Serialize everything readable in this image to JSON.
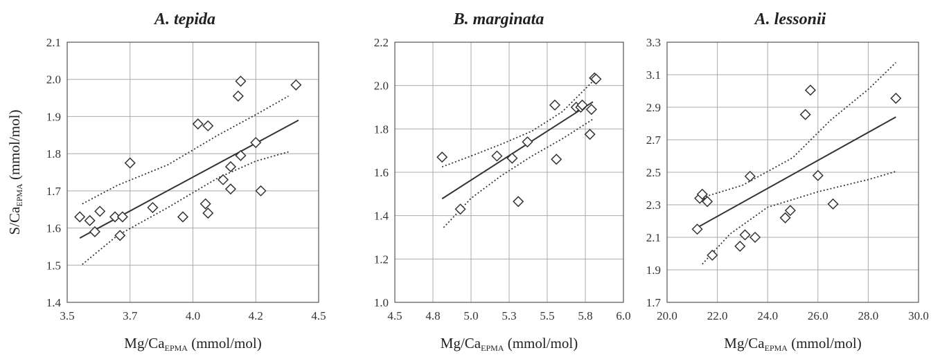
{
  "chart_data": [
    {
      "type": "scatter",
      "title": "A. tepida",
      "xlabel": {
        "main": "Mg/Ca",
        "sub": "EPMA",
        "unit": " (mmol/mol)"
      },
      "ylabel": {
        "main": "S/Ca",
        "sub": "EPMA",
        "unit": " (mmol/mol)"
      },
      "xlim": [
        3.5,
        4.5
      ],
      "ylim": [
        1.4,
        2.1
      ],
      "x_ticks": [
        "3.5",
        "3.7",
        "4.0",
        "4.2",
        "4.5"
      ],
      "y_ticks": [
        "1.4",
        "1.5",
        "1.6",
        "1.7",
        "1.8",
        "1.9",
        "2.0",
        "2.1"
      ],
      "grid": true,
      "points": [
        [
          3.55,
          1.63
        ],
        [
          3.59,
          1.62
        ],
        [
          3.61,
          1.59
        ],
        [
          3.63,
          1.645
        ],
        [
          3.69,
          1.63
        ],
        [
          3.71,
          1.58
        ],
        [
          3.72,
          1.63
        ],
        [
          3.75,
          1.775
        ],
        [
          3.84,
          1.655
        ],
        [
          3.96,
          1.63
        ],
        [
          4.02,
          1.88
        ],
        [
          4.06,
          1.875
        ],
        [
          4.05,
          1.665
        ],
        [
          4.06,
          1.64
        ],
        [
          4.12,
          1.73
        ],
        [
          4.15,
          1.765
        ],
        [
          4.15,
          1.705
        ],
        [
          4.18,
          1.955
        ],
        [
          4.19,
          1.995
        ],
        [
          4.19,
          1.795
        ],
        [
          4.25,
          1.83
        ],
        [
          4.27,
          1.7
        ],
        [
          4.41,
          1.985
        ]
      ],
      "fit": [
        [
          3.55,
          1.573
        ],
        [
          4.42,
          1.89
        ]
      ],
      "ci_upper": [
        [
          3.56,
          1.665
        ],
        [
          3.7,
          1.715
        ],
        [
          3.9,
          1.77
        ],
        [
          4.1,
          1.85
        ],
        [
          4.25,
          1.905
        ],
        [
          4.38,
          1.955
        ]
      ],
      "ci_lower": [
        [
          3.56,
          1.502
        ],
        [
          3.7,
          1.58
        ],
        [
          3.9,
          1.655
        ],
        [
          4.1,
          1.735
        ],
        [
          4.25,
          1.78
        ],
        [
          4.38,
          1.805
        ]
      ]
    },
    {
      "type": "scatter",
      "title": "B. marginata",
      "xlabel": {
        "main": "Mg/Ca",
        "sub": "EPMA",
        "unit": " (mmol/mol)"
      },
      "ylabel": {
        "main": "",
        "sub": "",
        "unit": ""
      },
      "xlim": [
        4.5,
        6.0
      ],
      "ylim": [
        1.0,
        2.2
      ],
      "x_ticks": [
        "4.5",
        "4.8",
        "5.0",
        "5.3",
        "5.5",
        "5.8",
        "6.0"
      ],
      "y_ticks": [
        "1.0",
        "1.2",
        "1.4",
        "1.6",
        "1.8",
        "2.0",
        "2.2"
      ],
      "grid": true,
      "points": [
        [
          4.81,
          1.67
        ],
        [
          4.93,
          1.43
        ],
        [
          5.17,
          1.675
        ],
        [
          5.27,
          1.665
        ],
        [
          5.31,
          1.465
        ],
        [
          5.37,
          1.74
        ],
        [
          5.55,
          1.91
        ],
        [
          5.56,
          1.66
        ],
        [
          5.69,
          1.9
        ],
        [
          5.72,
          1.9
        ],
        [
          5.73,
          1.91
        ],
        [
          5.78,
          1.775
        ],
        [
          5.79,
          1.89
        ],
        [
          5.81,
          2.035
        ],
        [
          5.82,
          2.03
        ]
      ],
      "fit": [
        [
          4.81,
          1.478
        ],
        [
          5.8,
          1.925
        ]
      ],
      "ci_upper": [
        [
          4.81,
          1.625
        ],
        [
          5.0,
          1.675
        ],
        [
          5.2,
          1.73
        ],
        [
          5.4,
          1.79
        ],
        [
          5.6,
          1.88
        ],
        [
          5.8,
          2.02
        ]
      ],
      "ci_lower": [
        [
          4.82,
          1.345
        ],
        [
          5.0,
          1.48
        ],
        [
          5.2,
          1.585
        ],
        [
          5.4,
          1.675
        ],
        [
          5.6,
          1.755
        ],
        [
          5.8,
          1.845
        ]
      ]
    },
    {
      "type": "scatter",
      "title": "A. lessonii",
      "xlabel": {
        "main": "Mg/Ca",
        "sub": "EPMA",
        "unit": " (mmol/mol)"
      },
      "ylabel": {
        "main": "",
        "sub": "",
        "unit": ""
      },
      "xlim": [
        20.0,
        30.0
      ],
      "ylim": [
        1.7,
        3.3
      ],
      "x_ticks": [
        "20.0",
        "22.0",
        "24.0",
        "26.0",
        "28.0",
        "30.0"
      ],
      "y_ticks": [
        "1.7",
        "1.9",
        "2.1",
        "2.3",
        "2.5",
        "2.7",
        "2.9",
        "3.1",
        "3.3"
      ],
      "grid": true,
      "points": [
        [
          21.2,
          2.15
        ],
        [
          21.3,
          2.34
        ],
        [
          21.4,
          2.365
        ],
        [
          21.6,
          2.32
        ],
        [
          21.8,
          1.99
        ],
        [
          22.9,
          2.045
        ],
        [
          23.1,
          2.115
        ],
        [
          23.3,
          2.475
        ],
        [
          23.5,
          2.1
        ],
        [
          24.7,
          2.22
        ],
        [
          24.9,
          2.265
        ],
        [
          25.5,
          2.855
        ],
        [
          25.7,
          3.005
        ],
        [
          26.0,
          2.48
        ],
        [
          26.6,
          2.305
        ],
        [
          29.1,
          2.955
        ]
      ],
      "fit": [
        [
          21.2,
          2.16
        ],
        [
          29.1,
          2.84
        ]
      ],
      "ci_upper": [
        [
          21.4,
          2.345
        ],
        [
          23.0,
          2.42
        ],
        [
          25.0,
          2.59
        ],
        [
          26.5,
          2.82
        ],
        [
          28.0,
          3.01
        ],
        [
          29.1,
          3.175
        ]
      ],
      "ci_lower": [
        [
          21.4,
          1.935
        ],
        [
          22.5,
          2.12
        ],
        [
          24.0,
          2.285
        ],
        [
          26.0,
          2.38
        ],
        [
          28.0,
          2.455
        ],
        [
          29.1,
          2.505
        ]
      ]
    }
  ]
}
